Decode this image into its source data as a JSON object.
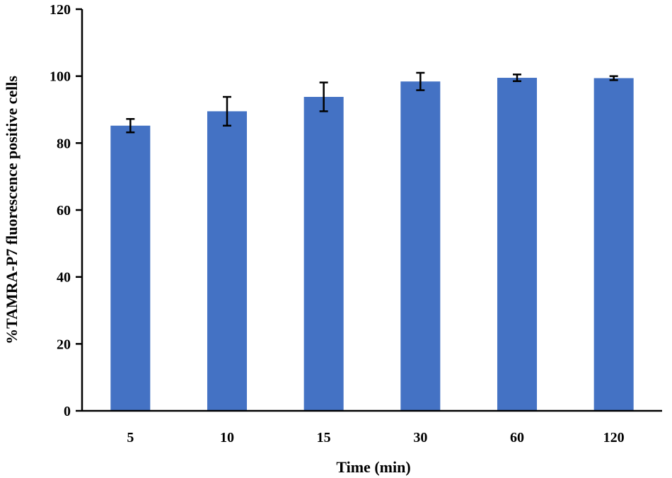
{
  "chart_data": {
    "type": "bar",
    "title": "",
    "xlabel": "Time (min)",
    "ylabel": "%TAMRA-P7 fluorescence positive cells",
    "categories": [
      "5",
      "10",
      "15",
      "30",
      "60",
      "120"
    ],
    "values": [
      85.2,
      89.5,
      93.8,
      98.4,
      99.5,
      99.4
    ],
    "errors": [
      2.0,
      4.3,
      4.3,
      2.6,
      1.0,
      0.6
    ],
    "ylim": [
      0,
      120
    ],
    "yticks": [
      "0",
      "20",
      "40",
      "60",
      "80",
      "100",
      "120"
    ],
    "bar_color": "#4472C4",
    "grid": false,
    "legend": "none"
  }
}
